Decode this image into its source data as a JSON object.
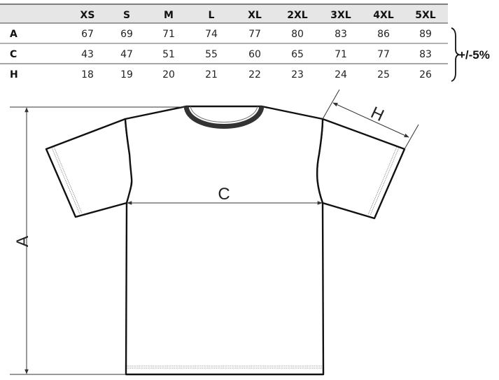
{
  "size_table": {
    "columns": [
      "XS",
      "S",
      "M",
      "L",
      "XL",
      "2XL",
      "3XL",
      "4XL",
      "5XL"
    ],
    "rows": [
      {
        "label": "A",
        "values": [
          "67",
          "69",
          "71",
          "74",
          "77",
          "80",
          "83",
          "86",
          "89"
        ]
      },
      {
        "label": "C",
        "values": [
          "43",
          "47",
          "51",
          "55",
          "60",
          "65",
          "71",
          "77",
          "83"
        ]
      },
      {
        "label": "H",
        "values": [
          "18",
          "19",
          "20",
          "21",
          "22",
          "23",
          "24",
          "25",
          "26"
        ]
      }
    ],
    "tolerance": "+/-5%",
    "header_bg": "#e6e6e6"
  },
  "diagram": {
    "label_a": "A",
    "label_c": "C",
    "label_h": "H"
  }
}
